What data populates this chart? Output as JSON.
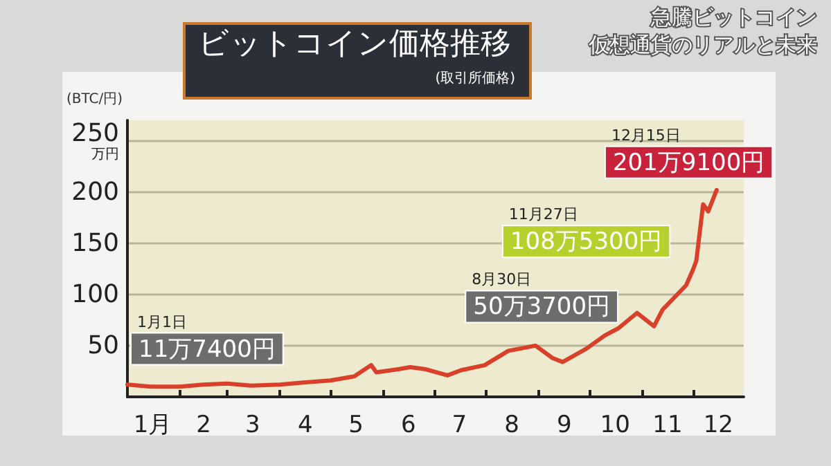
{
  "chart_data": {
    "type": "line",
    "title": "ビットコイン価格推移",
    "subtitle": "(取引所価格)",
    "ylabel": "(BTC/円)",
    "annotations": [
      "急騰ビットコイン",
      "仮想通貨のリアルと未来",
      {
        "text": "1月1日\n11万7400円",
        "x": "--01-01",
        "y": 11.74
      },
      {
        "text": "8月30日\n50万3700円",
        "x": "--08-30",
        "y": 50.37
      },
      {
        "text": "11月27日\n108万5300円",
        "x": "--11-27",
        "y": 108.53
      },
      {
        "text": "12月15日\n201万9100円",
        "x": "--12-15",
        "y": 201.91
      }
    ],
    "x": [
      "--01-01",
      "--01-15",
      "--02-01",
      "--02-15",
      "--03-01",
      "--03-15",
      "--04-01",
      "--04-15",
      "--05-01",
      "--05-15",
      "--05-25",
      "--05-28",
      "--06-10",
      "--06-17",
      "--06-26",
      "--07-09",
      "--07-17",
      "--07-31",
      "--08-14",
      "--08-30",
      "--09-09",
      "--09-15",
      "--09-29",
      "--10-10",
      "--10-18",
      "--10-29",
      "--11-08",
      "--11-13",
      "--11-27",
      "--12-01",
      "--12-03",
      "--12-07",
      "--12-10",
      "--12-15"
    ],
    "series": [
      {
        "color": "#d8402a",
        "values": [
          12,
          10,
          10,
          12,
          13,
          11,
          12,
          14,
          16,
          20,
          31,
          24,
          27,
          29,
          27,
          21,
          26,
          31,
          45,
          50,
          38,
          34,
          47,
          60,
          67,
          82,
          69,
          85,
          109,
          124,
          133,
          188,
          181,
          202
        ]
      }
    ],
    "xlim": [
      "--01-01",
      "--12-31"
    ],
    "xticks": [
      {
        "value": "--01-16",
        "label": "1月"
      },
      {
        "value": "--02-01",
        "label": null
      },
      {
        "value": "--02-15",
        "label": "2"
      },
      {
        "value": "--03-01",
        "label": null
      },
      {
        "value": "--03-16",
        "label": "3"
      },
      {
        "value": "--04-01",
        "label": null
      },
      {
        "value": "--04-16",
        "label": "4"
      },
      {
        "value": "--05-01",
        "label": null
      },
      {
        "value": "--05-16",
        "label": "5"
      },
      {
        "value": "--06-01",
        "label": null
      },
      {
        "value": "--06-16",
        "label": "6"
      },
      {
        "value": "--07-01",
        "label": null
      },
      {
        "value": "--07-16",
        "label": "7"
      },
      {
        "value": "--08-01",
        "label": null
      },
      {
        "value": "--08-16",
        "label": "8"
      },
      {
        "value": "--09-01",
        "label": null
      },
      {
        "value": "--09-16",
        "label": "9"
      },
      {
        "value": "--10-01",
        "label": null
      },
      {
        "value": "--10-16",
        "label": "10"
      },
      {
        "value": "--11-01",
        "label": null
      },
      {
        "value": "--11-16",
        "label": "11"
      },
      {
        "value": "--12-01",
        "label": null
      },
      {
        "value": "--12-16",
        "label": "12"
      }
    ],
    "ylim": [
      0,
      270
    ],
    "yticks": [
      50,
      100,
      150,
      {
        "value": 200,
        "label": "200"
      },
      {
        "value": 250,
        "label": "250\n万円"
      }
    ],
    "grid": "y",
    "marker": "none",
    "line_style": "solid"
  }
}
